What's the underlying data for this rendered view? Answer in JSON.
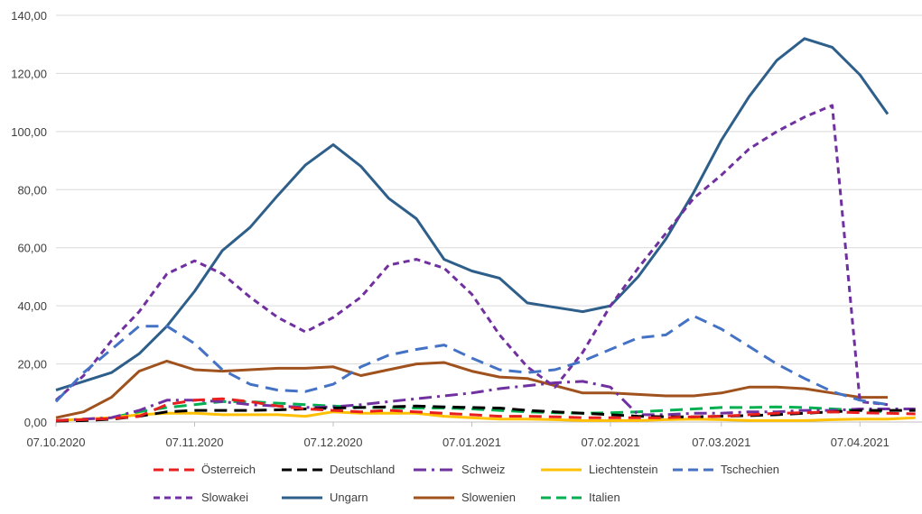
{
  "chart_data": {
    "type": "line",
    "title": "",
    "xlabel": "",
    "ylabel": "",
    "ylim": [
      0,
      140
    ],
    "grid": "horizontal",
    "legend_position": "bottom",
    "y_ticks": [
      "0,00",
      "20,00",
      "40,00",
      "60,00",
      "80,00",
      "100,00",
      "120,00",
      "140,00"
    ],
    "x_ticks": [
      "07.10.2020",
      "07.11.2020",
      "07.12.2020",
      "07.01.2021",
      "07.02.2021",
      "07.03.2021",
      "07.04.2021"
    ],
    "x_tick_index": [
      0,
      5,
      10,
      15,
      20,
      24,
      29
    ],
    "series": [
      {
        "name": "Österreich",
        "color": "#e81f1f",
        "dash": "long",
        "values": [
          0.5,
          0.8,
          1.2,
          2,
          6,
          7.5,
          8,
          7,
          5.5,
          4.5,
          4,
          3.5,
          4,
          3.5,
          3,
          2.5,
          2,
          2,
          1.8,
          1.5,
          1.5,
          1.5,
          1.5,
          1.8,
          2,
          2.5,
          3,
          3.2,
          3.5,
          3.2,
          3,
          2.8
        ]
      },
      {
        "name": "Deutschland",
        "color": "#000000",
        "dash": "long",
        "values": [
          0.3,
          0.5,
          1,
          2,
          3.5,
          4,
          4,
          4,
          4.2,
          4.5,
          4.8,
          5,
          5.2,
          5.5,
          5.2,
          5,
          4.8,
          4,
          3.5,
          3,
          2.5,
          2,
          1.8,
          1.8,
          2,
          2.2,
          2.5,
          3,
          3.5,
          4,
          4,
          4
        ]
      },
      {
        "name": "Schweiz",
        "color": "#7030a0",
        "dash": "dashdot",
        "values": [
          0.5,
          1,
          1.5,
          4,
          7.5,
          7.5,
          7,
          6,
          5.5,
          5,
          5.2,
          6,
          7,
          8,
          9,
          10,
          11.5,
          12.5,
          13.5,
          14,
          12,
          2.5,
          2.5,
          3,
          3,
          3.5,
          3.5,
          4,
          4,
          4.5,
          4.5,
          4.5
        ]
      },
      {
        "name": "Liechtenstein",
        "color": "#ffc000",
        "dash": "solid",
        "values": [
          0.5,
          1,
          1.5,
          2.5,
          3,
          3,
          2.5,
          2.5,
          2.5,
          2,
          3.5,
          3,
          3,
          3,
          2,
          1.5,
          1,
          1,
          0.8,
          0.5,
          0.5,
          0.5,
          0.8,
          1,
          0.8,
          0.5,
          0.5,
          0.5,
          0.8,
          1,
          1,
          1.5
        ]
      },
      {
        "name": "Tschechien",
        "color": "#4472c4",
        "dash": "long",
        "values": [
          7,
          17,
          25,
          33,
          33,
          27,
          18,
          13,
          11,
          10.5,
          13,
          19,
          23,
          25,
          26.5,
          22,
          18,
          17,
          18,
          21,
          25,
          29,
          30,
          36.5,
          32,
          26,
          20,
          15,
          10.5,
          7.5,
          6
        ]
      },
      {
        "name": "Slowakei",
        "color": "#7030a0",
        "dash": "short",
        "values": [
          7.5,
          16,
          28,
          38,
          51,
          55.5,
          51,
          43,
          36,
          31,
          36,
          43,
          54,
          56,
          53,
          44,
          30,
          19,
          12,
          24,
          40,
          53,
          65,
          77,
          85,
          94,
          100,
          105,
          109,
          7,
          6
        ]
      },
      {
        "name": "Ungarn",
        "color": "#2e5f8a",
        "dash": "solid",
        "values": [
          11,
          14,
          17,
          23.5,
          33,
          45,
          59,
          67,
          78,
          88.5,
          95.5,
          88,
          77,
          70,
          56,
          52,
          49.5,
          41,
          39.5,
          38,
          40,
          50,
          63,
          79,
          97,
          112,
          124.5,
          132,
          129,
          119.5,
          106
        ]
      },
      {
        "name": "Slowenien",
        "color": "#a0521e",
        "dash": "solid",
        "values": [
          1.5,
          3.5,
          8.5,
          17.5,
          21,
          18,
          17.5,
          18,
          18.5,
          18.5,
          19,
          16,
          18,
          20,
          20.5,
          17.5,
          15.5,
          15,
          12.5,
          10,
          10,
          9.5,
          9,
          9,
          10,
          12,
          12,
          11.5,
          10,
          8.5,
          8.5
        ]
      },
      {
        "name": "Italien",
        "color": "#00b050",
        "dash": "long",
        "values": [
          0.5,
          0.5,
          1.5,
          3.5,
          5,
          6,
          7,
          7,
          6.5,
          6,
          5.5,
          5,
          5,
          4.8,
          4.8,
          4.5,
          4,
          3.5,
          3.2,
          3,
          3.2,
          3.5,
          4,
          4.5,
          5,
          5,
          5.2,
          5,
          4.5,
          4,
          3.5
        ]
      }
    ]
  }
}
